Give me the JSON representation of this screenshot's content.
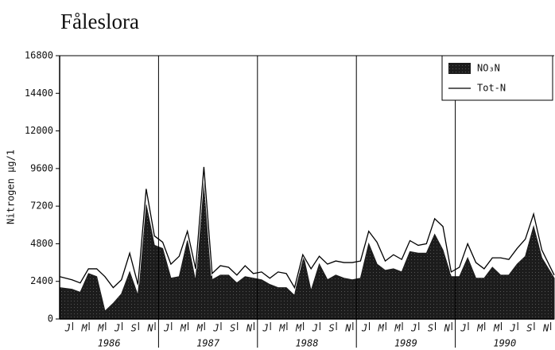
{
  "chart_data": {
    "type": "area-line",
    "title": "Fåleslora",
    "y_label": "Nitrogen µg/1",
    "categories": [
      "J",
      null,
      "M",
      null,
      "M",
      null,
      "J",
      null,
      "S",
      null,
      "N",
      null,
      "J",
      null,
      "M",
      null,
      "M",
      null,
      "J",
      null,
      "S",
      null,
      "N",
      null,
      "J",
      null,
      "M",
      null,
      "M",
      null,
      "J",
      null,
      "S",
      null,
      "N",
      null,
      "J",
      null,
      "M",
      null,
      "M",
      null,
      "J",
      null,
      "S",
      null,
      "N",
      null,
      "J",
      null,
      "M",
      null,
      "M",
      null,
      "J",
      null,
      "S",
      null,
      "N",
      null
    ],
    "years": [
      "1986",
      "1987",
      "1988",
      "1989",
      "1990"
    ],
    "series": [
      {
        "name": "NO₃N",
        "color": "#1c1c1c",
        "values": [
          2000,
          1900,
          1700,
          2900,
          2700,
          500,
          1000,
          1600,
          3000,
          1500,
          7300,
          4700,
          4500,
          2600,
          2700,
          5000,
          2400,
          9700,
          2500,
          2800,
          2800,
          2300,
          2700,
          2600,
          2500,
          2200,
          2000,
          2000,
          1500,
          4200,
          1800,
          3500,
          2500,
          2800,
          2600,
          2500,
          2600,
          4800,
          3500,
          3100,
          3200,
          3000,
          4300,
          4200,
          4200,
          5400,
          4400,
          2700,
          2700,
          3900,
          2600,
          2600,
          3300,
          2800,
          2800,
          3500,
          4000,
          5900,
          3900,
          2600
        ]
      },
      {
        "name": "Tot-N",
        "color": "#000000",
        "values": [
          2700,
          2500,
          2300,
          3200,
          3200,
          2700,
          2000,
          2500,
          4200,
          2200,
          8300,
          5300,
          4900,
          3500,
          4000,
          5600,
          3200,
          9700,
          2900,
          3400,
          3300,
          2800,
          3400,
          2900,
          3000,
          2600,
          3000,
          2900,
          2000,
          4100,
          3200,
          4000,
          3500,
          3700,
          3600,
          3600,
          3700,
          5600,
          4900,
          3700,
          4100,
          3800,
          5000,
          4700,
          4800,
          6400,
          5900,
          3000,
          3300,
          4800,
          3600,
          3200,
          3900,
          3900,
          3800,
          4500,
          5100,
          6700,
          4400,
          2800
        ]
      }
    ],
    "ylim": [
      0,
      16800
    ],
    "yticks": [
      0,
      2400,
      4800,
      7200,
      9600,
      12000,
      14400,
      16800
    ],
    "legend": "top-right"
  }
}
